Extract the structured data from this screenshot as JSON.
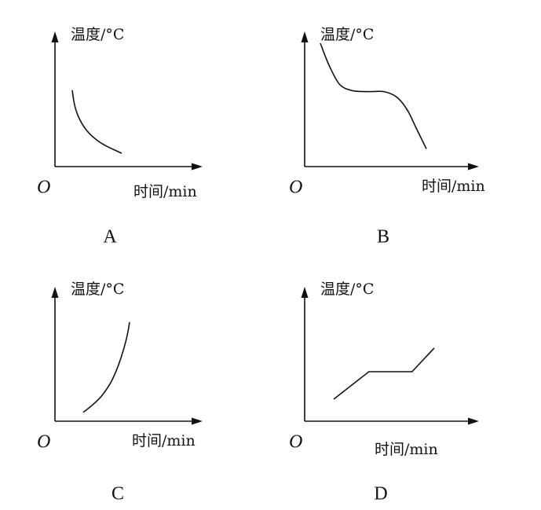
{
  "chart_data": [
    {
      "type": "line",
      "panel_label": "A",
      "ylabel": "温度/°C",
      "xlabel": "时间/min",
      "origin_label": "O",
      "series": [
        {
          "x": [
            0.0,
            0.05,
            0.15,
            0.3,
            0.5,
            0.7,
            0.9,
            1.0
          ],
          "y": [
            0.85,
            0.65,
            0.47,
            0.32,
            0.2,
            0.12,
            0.06,
            0.03
          ]
        }
      ]
    },
    {
      "type": "line",
      "panel_label": "B",
      "ylabel": "温度/°C",
      "xlabel": "时间/min",
      "origin_label": "O",
      "series": [
        {
          "x": [
            0.0,
            0.08,
            0.18,
            0.3,
            0.45,
            0.6,
            0.72,
            0.82,
            0.9,
            1.0
          ],
          "y": [
            1.0,
            0.8,
            0.62,
            0.56,
            0.55,
            0.55,
            0.5,
            0.38,
            0.22,
            0.02
          ]
        }
      ]
    },
    {
      "type": "line",
      "panel_label": "C",
      "ylabel": "温度/°C",
      "xlabel": "时间/min",
      "origin_label": "O",
      "series": [
        {
          "x": [
            0.0,
            0.2,
            0.4,
            0.6,
            0.75,
            0.88,
            0.96,
            1.0
          ],
          "y": [
            0.02,
            0.1,
            0.2,
            0.35,
            0.52,
            0.72,
            0.88,
            1.0
          ]
        }
      ]
    },
    {
      "type": "line",
      "panel_label": "D",
      "ylabel": "温度/°C",
      "xlabel": "时间/min",
      "origin_label": "O",
      "series": [
        {
          "x": [
            0.0,
            0.35,
            0.78,
            1.0
          ],
          "y": [
            0.0,
            0.5,
            0.5,
            0.93
          ]
        }
      ]
    }
  ]
}
